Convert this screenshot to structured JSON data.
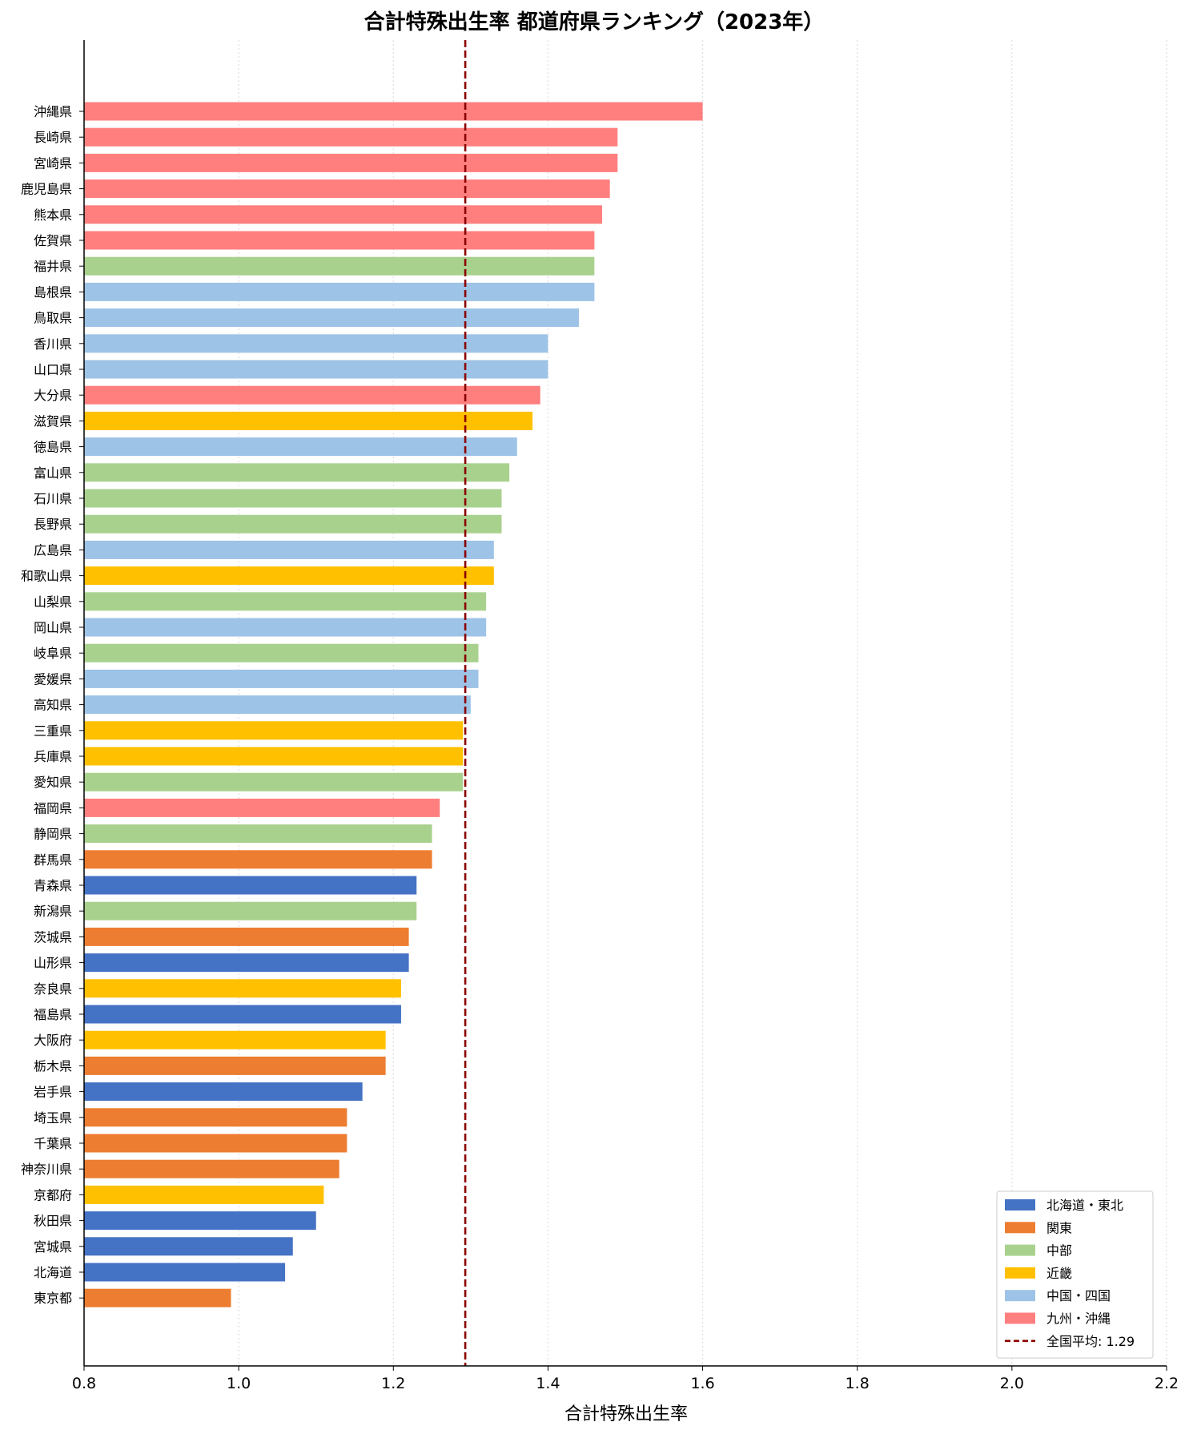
{
  "chart_data": {
    "type": "bar",
    "orientation": "horizontal",
    "title": "合計特殊出生率 都道府県ランキング（2023年）",
    "xlabel": "合計特殊出生率",
    "ylabel": "",
    "xlim": [
      0.8,
      2.2
    ],
    "xticks": [
      "0.8",
      "1.0",
      "1.2",
      "1.4",
      "1.6",
      "1.8",
      "2.0",
      "2.2"
    ],
    "grid": "vertical dotted",
    "legend_position": "bottom-right",
    "regions": [
      {
        "name": "北海道・東北",
        "color": "#4472C4"
      },
      {
        "name": "関東",
        "color": "#ED7D31"
      },
      {
        "name": "中部",
        "color": "#A9D18E"
      },
      {
        "name": "近畿",
        "color": "#FFC000"
      },
      {
        "name": "中国・四国",
        "color": "#9DC3E6"
      },
      {
        "name": "九州・沖縄",
        "color": "#FF7F7F"
      }
    ],
    "national_average": {
      "label": "全国平均: 1.29",
      "value": 1.293,
      "color": "#8B0000"
    },
    "bars": [
      {
        "category": "沖縄県",
        "value": 1.6,
        "region": 5
      },
      {
        "category": "長崎県",
        "value": 1.49,
        "region": 5
      },
      {
        "category": "宮崎県",
        "value": 1.49,
        "region": 5
      },
      {
        "category": "鹿児島県",
        "value": 1.48,
        "region": 5
      },
      {
        "category": "熊本県",
        "value": 1.47,
        "region": 5
      },
      {
        "category": "佐賀県",
        "value": 1.46,
        "region": 5
      },
      {
        "category": "福井県",
        "value": 1.46,
        "region": 2
      },
      {
        "category": "島根県",
        "value": 1.46,
        "region": 4
      },
      {
        "category": "鳥取県",
        "value": 1.44,
        "region": 4
      },
      {
        "category": "香川県",
        "value": 1.4,
        "region": 4
      },
      {
        "category": "山口県",
        "value": 1.4,
        "region": 4
      },
      {
        "category": "大分県",
        "value": 1.39,
        "region": 5
      },
      {
        "category": "滋賀県",
        "value": 1.38,
        "region": 3
      },
      {
        "category": "徳島県",
        "value": 1.36,
        "region": 4
      },
      {
        "category": "富山県",
        "value": 1.35,
        "region": 2
      },
      {
        "category": "石川県",
        "value": 1.34,
        "region": 2
      },
      {
        "category": "長野県",
        "value": 1.34,
        "region": 2
      },
      {
        "category": "広島県",
        "value": 1.33,
        "region": 4
      },
      {
        "category": "和歌山県",
        "value": 1.33,
        "region": 3
      },
      {
        "category": "山梨県",
        "value": 1.32,
        "region": 2
      },
      {
        "category": "岡山県",
        "value": 1.32,
        "region": 4
      },
      {
        "category": "岐阜県",
        "value": 1.31,
        "region": 2
      },
      {
        "category": "愛媛県",
        "value": 1.31,
        "region": 4
      },
      {
        "category": "高知県",
        "value": 1.3,
        "region": 4
      },
      {
        "category": "三重県",
        "value": 1.29,
        "region": 3
      },
      {
        "category": "兵庫県",
        "value": 1.29,
        "region": 3
      },
      {
        "category": "愛知県",
        "value": 1.29,
        "region": 2
      },
      {
        "category": "福岡県",
        "value": 1.26,
        "region": 5
      },
      {
        "category": "静岡県",
        "value": 1.25,
        "region": 2
      },
      {
        "category": "群馬県",
        "value": 1.25,
        "region": 1
      },
      {
        "category": "青森県",
        "value": 1.23,
        "region": 0
      },
      {
        "category": "新潟県",
        "value": 1.23,
        "region": 2
      },
      {
        "category": "茨城県",
        "value": 1.22,
        "region": 1
      },
      {
        "category": "山形県",
        "value": 1.22,
        "region": 0
      },
      {
        "category": "奈良県",
        "value": 1.21,
        "region": 3
      },
      {
        "category": "福島県",
        "value": 1.21,
        "region": 0
      },
      {
        "category": "大阪府",
        "value": 1.19,
        "region": 3
      },
      {
        "category": "栃木県",
        "value": 1.19,
        "region": 1
      },
      {
        "category": "岩手県",
        "value": 1.16,
        "region": 0
      },
      {
        "category": "埼玉県",
        "value": 1.14,
        "region": 1
      },
      {
        "category": "千葉県",
        "value": 1.14,
        "region": 1
      },
      {
        "category": "神奈川県",
        "value": 1.13,
        "region": 1
      },
      {
        "category": "京都府",
        "value": 1.11,
        "region": 3
      },
      {
        "category": "秋田県",
        "value": 1.1,
        "region": 0
      },
      {
        "category": "宮城県",
        "value": 1.07,
        "region": 0
      },
      {
        "category": "北海道",
        "value": 1.06,
        "region": 0
      },
      {
        "category": "東京都",
        "value": 0.99,
        "region": 1
      }
    ]
  }
}
